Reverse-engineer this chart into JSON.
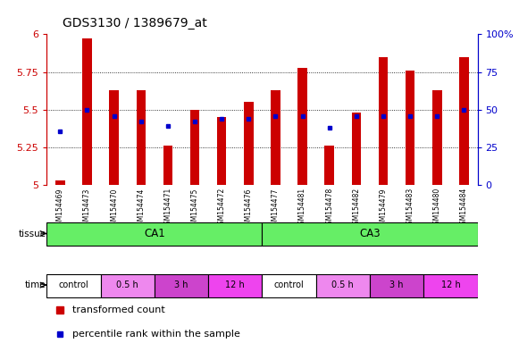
{
  "title": "GDS3130 / 1389679_at",
  "samples": [
    "GSM154469",
    "GSM154473",
    "GSM154470",
    "GSM154474",
    "GSM154471",
    "GSM154475",
    "GSM154472",
    "GSM154476",
    "GSM154477",
    "GSM154481",
    "GSM154478",
    "GSM154482",
    "GSM154479",
    "GSM154483",
    "GSM154480",
    "GSM154484"
  ],
  "red_bars": [
    5.03,
    5.97,
    5.63,
    5.63,
    5.26,
    5.5,
    5.45,
    5.55,
    5.63,
    5.78,
    5.26,
    5.48,
    5.85,
    5.76,
    5.63,
    5.85
  ],
  "blue_dots": [
    5.36,
    5.5,
    5.46,
    5.42,
    5.39,
    5.42,
    5.44,
    5.44,
    5.46,
    5.46,
    5.38,
    5.46,
    5.46,
    5.46,
    5.46,
    5.5
  ],
  "ylim": [
    5.0,
    6.0
  ],
  "yticks": [
    5.0,
    5.25,
    5.5,
    5.75,
    6.0
  ],
  "ytick_labels": [
    "5",
    "5.25",
    "5.5",
    "5.75",
    "6"
  ],
  "y_right_ticks": [
    0,
    25,
    50,
    75,
    100
  ],
  "y_right_labels": [
    "0",
    "25",
    "50",
    "75",
    "100%"
  ],
  "bar_color": "#cc0000",
  "dot_color": "#0000cc",
  "background_color": "#ffffff",
  "tissue_labels": [
    {
      "label": "CA1",
      "start": 0,
      "end": 8
    },
    {
      "label": "CA3",
      "start": 8,
      "end": 16
    }
  ],
  "tissue_color": "#66ee66",
  "time_groups": [
    {
      "label": "control",
      "start": 0,
      "end": 2,
      "color": "#ffffff"
    },
    {
      "label": "0.5 h",
      "start": 2,
      "end": 4,
      "color": "#ee88ee"
    },
    {
      "label": "3 h",
      "start": 4,
      "end": 6,
      "color": "#cc44cc"
    },
    {
      "label": "12 h",
      "start": 6,
      "end": 8,
      "color": "#ee44ee"
    },
    {
      "label": "control",
      "start": 8,
      "end": 10,
      "color": "#ffffff"
    },
    {
      "label": "0.5 h",
      "start": 10,
      "end": 12,
      "color": "#ee88ee"
    },
    {
      "label": "3 h",
      "start": 12,
      "end": 14,
      "color": "#cc44cc"
    },
    {
      "label": "12 h",
      "start": 14,
      "end": 16,
      "color": "#ee44ee"
    }
  ],
  "legend_red": "transformed count",
  "legend_blue": "percentile rank within the sample",
  "bar_width": 0.35
}
